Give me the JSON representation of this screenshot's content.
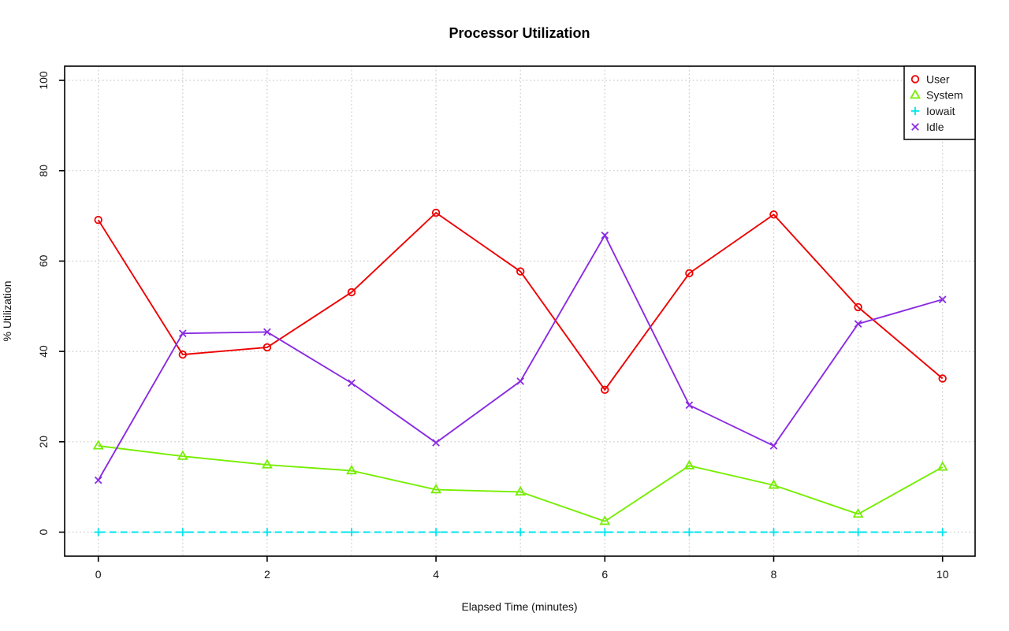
{
  "chart_data": {
    "type": "line",
    "title": "Processor Utilization",
    "xlabel": "Elapsed Time (minutes)",
    "ylabel": "% Utilization",
    "xlim": [
      0,
      10
    ],
    "ylim": [
      0,
      100
    ],
    "xticks": [
      0,
      2,
      4,
      6,
      8,
      10
    ],
    "yticks": [
      0,
      20,
      40,
      60,
      80,
      100
    ],
    "x_gridlines": [
      0,
      1,
      2,
      3,
      4,
      5,
      6,
      7,
      8,
      9,
      10
    ],
    "grid": "dotted",
    "legend_position": "top-right",
    "x": [
      0,
      1,
      2,
      3,
      4,
      5,
      6,
      7,
      8,
      9,
      10
    ],
    "series": [
      {
        "name": "User",
        "color": "#EE0000",
        "marker": "circle",
        "line": "solid",
        "values": [
          69.1,
          39.3,
          40.9,
          53.1,
          70.7,
          57.7,
          31.5,
          57.3,
          70.3,
          49.8,
          34.0
        ]
      },
      {
        "name": "System",
        "color": "#76EE00",
        "marker": "triangle",
        "line": "solid",
        "values": [
          19.1,
          16.8,
          14.9,
          13.6,
          9.4,
          8.9,
          2.4,
          14.7,
          10.4,
          4.0,
          14.4
        ]
      },
      {
        "name": "Iowait",
        "color": "#00E5EE",
        "marker": "plus",
        "line": "dashed",
        "values": [
          0,
          0,
          0,
          0,
          0,
          0,
          0,
          0,
          0,
          0,
          0
        ]
      },
      {
        "name": "Idle",
        "color": "#8A2BE2",
        "marker": "x",
        "line": "solid",
        "values": [
          11.5,
          44.0,
          44.3,
          33.0,
          19.8,
          33.4,
          65.7,
          28.1,
          19.1,
          46.1,
          51.5
        ]
      }
    ]
  },
  "colors": {
    "background": "#FFFFFF",
    "plot_border": "#000000",
    "grid": "#C9C9C9",
    "tick": "#000000",
    "text": "#111111"
  }
}
